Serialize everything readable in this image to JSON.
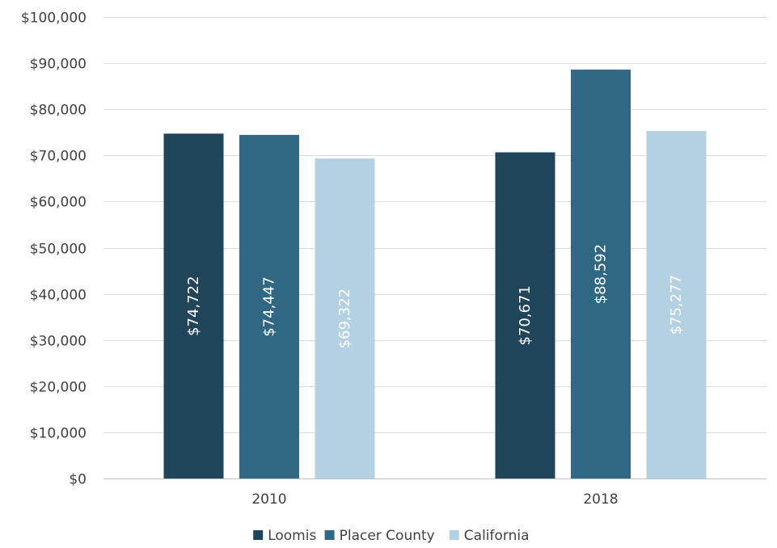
{
  "chart_data": {
    "type": "bar",
    "title": "",
    "xlabel": "",
    "ylabel": "",
    "categories": [
      "2010",
      "2018"
    ],
    "series": [
      {
        "name": "Loomis",
        "values": [
          74722,
          70671
        ],
        "labels": [
          "$74,722",
          "$70,671"
        ],
        "color": "#20445a"
      },
      {
        "name": "Placer County",
        "values": [
          74447,
          88592
        ],
        "labels": [
          "$74,447",
          "$88,592"
        ],
        "color": "#2f6784"
      },
      {
        "name": "California",
        "values": [
          69322,
          75277
        ],
        "labels": [
          "$69,322",
          "$75,277"
        ],
        "color": "#b3d1e3"
      }
    ],
    "ylim": [
      0,
      100000
    ],
    "yticks": [
      0,
      10000,
      20000,
      30000,
      40000,
      50000,
      60000,
      70000,
      80000,
      90000,
      100000
    ],
    "ytick_labels": [
      "$0",
      "$10,000",
      "$20,000",
      "$30,000",
      "$40,000",
      "$50,000",
      "$60,000",
      "$70,000",
      "$80,000",
      "$90,000",
      "$100,000"
    ],
    "grid": true,
    "legend_position": "bottom-center",
    "data_label_orientation": "vertical"
  }
}
